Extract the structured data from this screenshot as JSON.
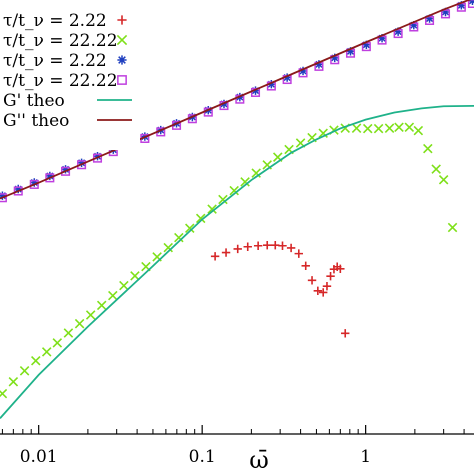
{
  "chart_data": {
    "type": "scatter",
    "x_scale": "log",
    "y_scale": "log",
    "xlim": [
      0.0058,
      4.6
    ],
    "ylim": [
      2.2e-05,
      0.12
    ],
    "xticks": [
      {
        "value": 0.01,
        "label": "0.01"
      },
      {
        "value": 0.1,
        "label": "0.1"
      },
      {
        "value": 1,
        "label": "1"
      }
    ],
    "xlabel": "ω̄",
    "legend_position": "top-left",
    "colors": {
      "red": "#d62728",
      "green": "#7fe01a",
      "blue": "#1f3fbf",
      "purple": "#bf3fdf",
      "teal": "#1fb28a",
      "brown": "#8b1a1a"
    },
    "series": [
      {
        "name": "τ/t_ν = 2.22",
        "marker": "plus",
        "color": "#d62728",
        "x": [
          0.12,
          0.14,
          0.165,
          0.19,
          0.22,
          0.25,
          0.28,
          0.31,
          0.35,
          0.39,
          0.43,
          0.47,
          0.51,
          0.55,
          0.58,
          0.61,
          0.64,
          0.67,
          0.7,
          0.75
        ],
        "y": [
          0.000745,
          0.000803,
          0.000862,
          0.000901,
          0.000919,
          0.000929,
          0.000929,
          0.000919,
          0.00088,
          0.000786,
          0.000617,
          0.000463,
          0.000376,
          0.000364,
          0.000412,
          0.000503,
          0.000577,
          0.000606,
          0.000582,
          0.000162
        ]
      },
      {
        "name": "τ/t_ν = 22.22",
        "marker": "cross",
        "color": "#7fe01a",
        "x": [
          0.006,
          0.007,
          0.0082,
          0.0096,
          0.0112,
          0.013,
          0.0152,
          0.0178,
          0.0208,
          0.0243,
          0.0284,
          0.0332,
          0.0388,
          0.0453,
          0.053,
          0.062,
          0.072,
          0.084,
          0.098,
          0.115,
          0.134,
          0.157,
          0.183,
          0.214,
          0.25,
          0.29,
          0.34,
          0.4,
          0.47,
          0.55,
          0.64,
          0.75,
          0.88,
          1.03,
          1.2,
          1.4,
          1.6,
          1.85,
          2.1,
          2.4,
          2.7,
          3.0,
          3.4
        ],
        "y": [
          4.9e-05,
          6.2e-05,
          7.7e-05,
          9.4e-05,
          0.000112,
          0.000134,
          0.000163,
          0.000196,
          0.000233,
          0.000282,
          0.000342,
          0.000417,
          0.000506,
          0.000608,
          0.000737,
          0.000885,
          0.00108,
          0.0013,
          0.00158,
          0.0019,
          0.0023,
          0.00274,
          0.00326,
          0.00388,
          0.00457,
          0.00532,
          0.00619,
          0.00705,
          0.00784,
          0.00855,
          0.0091,
          0.00945,
          0.00945,
          0.00937,
          0.00937,
          0.00945,
          0.00962,
          0.00962,
          0.00901,
          0.0063,
          0.0042,
          0.0034,
          0.00132
        ]
      },
      {
        "name": "τ/t_ν = 2.22",
        "marker": "star",
        "color": "#1f3fbf",
        "x": [
          0.006,
          0.0075,
          0.0094,
          0.0117,
          0.0146,
          0.0183,
          0.0229,
          0.0286,
          0.0357,
          0.0446,
          0.0558,
          0.0697,
          0.0871,
          0.109,
          0.136,
          0.17,
          0.212,
          0.265,
          0.331,
          0.414,
          0.518,
          0.647,
          0.808,
          1.01,
          1.26,
          1.58,
          1.97,
          2.46,
          3.08,
          3.85,
          4.5
        ],
        "y": [
          0.00248,
          0.00283,
          0.00322,
          0.00367,
          0.00418,
          0.00476,
          0.00542,
          0.00617,
          0.00703,
          0.008,
          0.00911,
          0.0104,
          0.0118,
          0.0135,
          0.0153,
          0.0175,
          0.0199,
          0.0226,
          0.0258,
          0.0294,
          0.0335,
          0.0381,
          0.0434,
          0.0494,
          0.0563,
          0.0641,
          0.0729,
          0.0831,
          0.0946,
          0.108,
          0.118
        ]
      },
      {
        "name": "τ/t_ν = 22.22",
        "marker": "square",
        "color": "#bf3fdf",
        "x": [
          0.006,
          0.0075,
          0.0094,
          0.0117,
          0.0146,
          0.0183,
          0.0229,
          0.0286,
          0.0357,
          0.0446,
          0.0558,
          0.0697,
          0.0871,
          0.109,
          0.136,
          0.17,
          0.212,
          0.265,
          0.331,
          0.414,
          0.518,
          0.647,
          0.808,
          1.01,
          1.26,
          1.58,
          1.97,
          2.46,
          3.08,
          3.85,
          4.5
        ],
        "y": [
          0.00238,
          0.00272,
          0.0031,
          0.00353,
          0.00402,
          0.00458,
          0.00522,
          0.00594,
          0.00677,
          0.00771,
          0.00878,
          0.01,
          0.0114,
          0.013,
          0.0148,
          0.0168,
          0.0192,
          0.0218,
          0.0248,
          0.0283,
          0.0322,
          0.0367,
          0.0418,
          0.0476,
          0.0542,
          0.0617,
          0.0703,
          0.08,
          0.0911,
          0.104,
          0.112
        ]
      },
      {
        "name": "G' theo",
        "marker": "line",
        "color": "#1fb28a",
        "x": [
          0.0058,
          0.01,
          0.02,
          0.05,
          0.1,
          0.2,
          0.35,
          0.5,
          0.7,
          1.0,
          1.5,
          2.2,
          3.0,
          4.6
        ],
        "y": [
          3e-05,
          7.1e-05,
          0.000185,
          0.000615,
          0.00155,
          0.00338,
          0.0058,
          0.00757,
          0.00941,
          0.0112,
          0.0129,
          0.014,
          0.0146,
          0.0147
        ]
      },
      {
        "name": "G'' theo",
        "marker": "line",
        "color": "#8b1a1a",
        "x": [
          0.0058,
          0.01,
          0.03,
          0.1,
          0.3,
          1.0,
          3.0,
          4.6
        ],
        "y": [
          0.00234,
          0.00321,
          0.00623,
          0.0129,
          0.025,
          0.0518,
          0.0993,
          0.125
        ]
      }
    ]
  }
}
